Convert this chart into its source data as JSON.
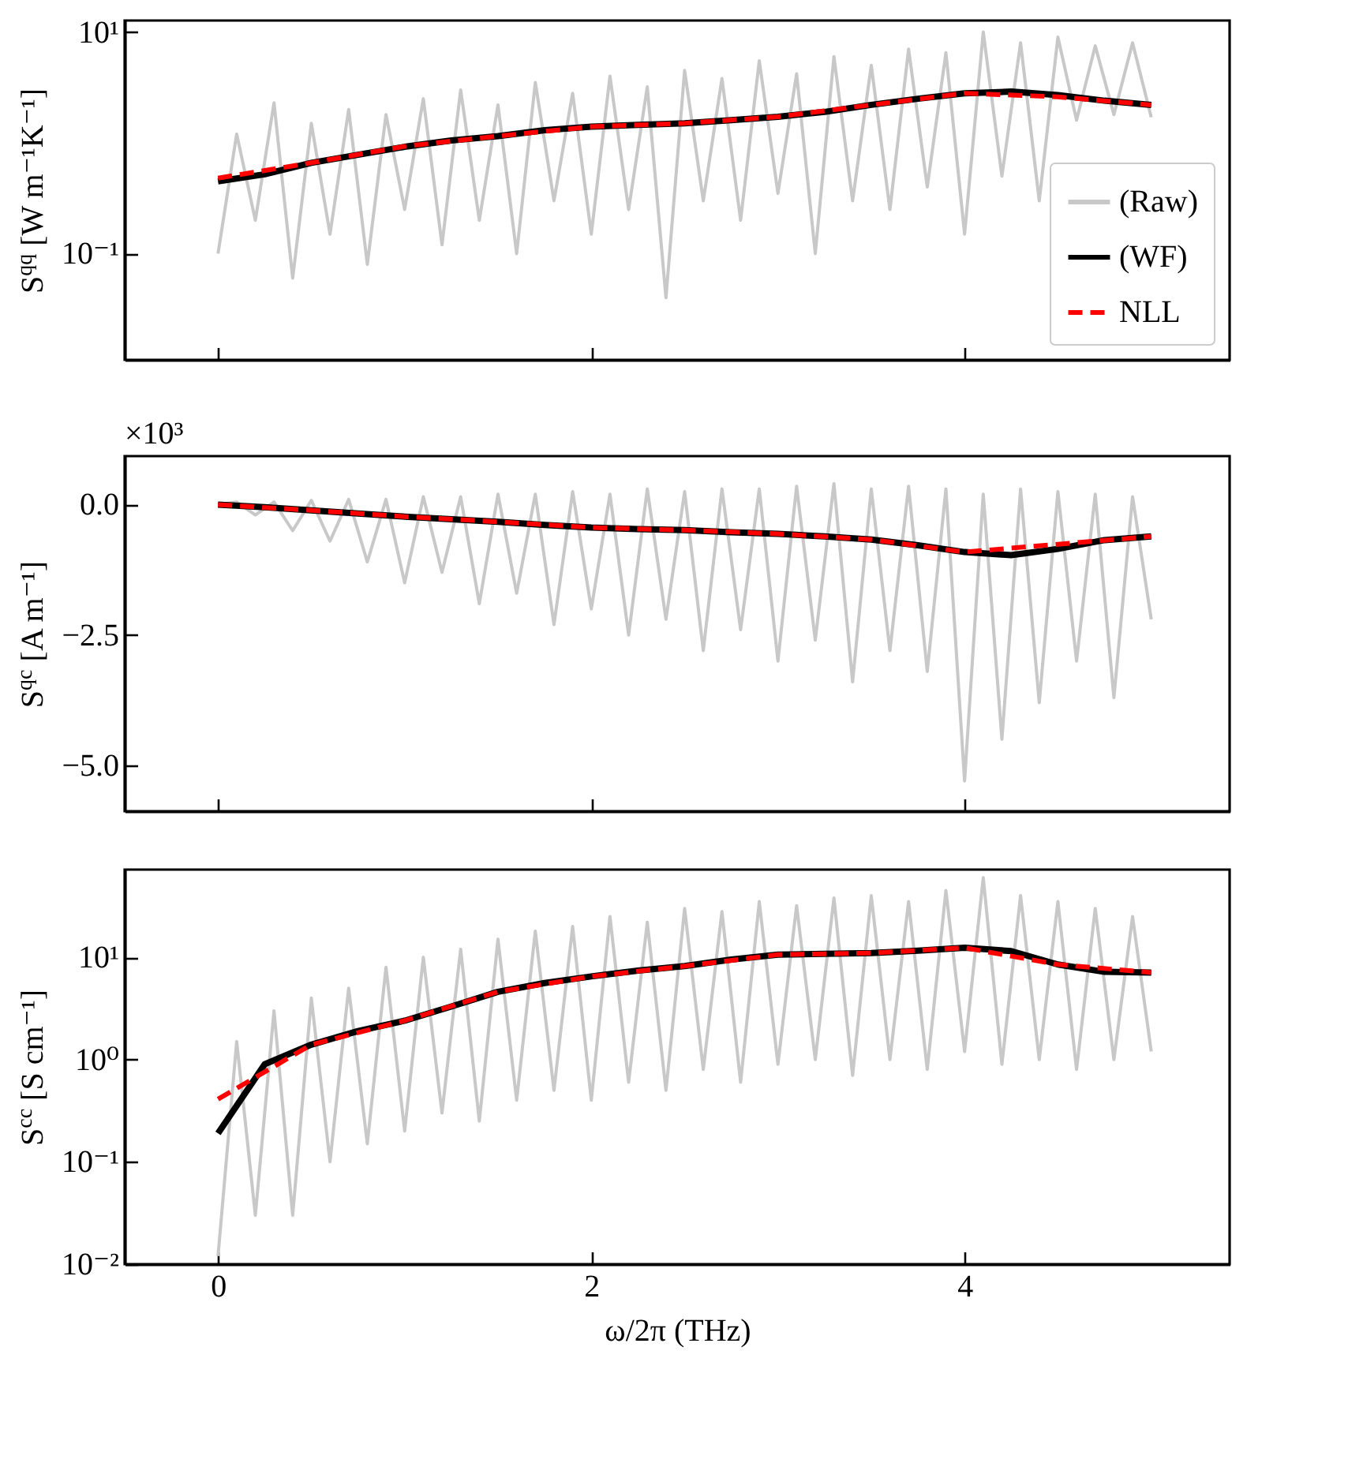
{
  "chart_data": [
    {
      "type": "line",
      "ylabel": "S$^{qq}$ [W m⁻¹K⁻¹]",
      "xlim": [
        -0.5,
        5.42
      ],
      "xticks": [
        0,
        2,
        4
      ],
      "ylim": [
        0.011,
        12.7
      ],
      "yticks": [
        {
          "value": 10,
          "label": "10¹"
        },
        {
          "value": 0.1,
          "label": "10⁻¹"
        }
      ],
      "log": "y",
      "grid": false,
      "legend": "bottom right",
      "tick_labels": "y",
      "series": [
        {
          "name": "(Raw)",
          "color": "#c8c8c8",
          "line_style": "solid",
          "x": [
            0,
            0.1,
            0.2,
            0.3,
            0.4,
            0.5,
            0.6,
            0.7,
            0.8,
            0.9,
            1,
            1.1,
            1.2,
            1.3,
            1.4,
            1.5,
            1.6,
            1.7,
            1.8,
            1.9,
            2,
            2.1,
            2.2,
            2.3,
            2.4,
            2.5,
            2.6,
            2.7,
            2.8,
            2.9,
            3,
            3.1,
            3.2,
            3.3,
            3.4,
            3.5,
            3.6,
            3.7,
            3.8,
            3.9,
            4,
            4.1,
            4.2,
            4.3,
            4.4,
            4.5,
            4.6,
            4.7,
            4.8,
            4.9,
            5
          ],
          "values": [
            0.1,
            1.2,
            0.2,
            2.3,
            0.06,
            1.5,
            0.15,
            2.0,
            0.08,
            1.8,
            0.25,
            2.5,
            0.12,
            3.0,
            0.2,
            2.2,
            0.1,
            3.5,
            0.3,
            2.8,
            0.15,
            4.0,
            0.25,
            3.2,
            0.04,
            4.5,
            0.3,
            3.8,
            0.2,
            5.5,
            0.35,
            4.2,
            0.1,
            6.0,
            0.3,
            5.0,
            0.25,
            7.0,
            0.4,
            6.5,
            0.15,
            10,
            0.5,
            8.0,
            0.3,
            9.0,
            1.6,
            7.5,
            1.8,
            8.0,
            1.7
          ]
        },
        {
          "name": "(WF)",
          "color": "#000000",
          "line_style": "solid",
          "x": [
            0,
            0.25,
            0.5,
            0.75,
            1,
            1.25,
            1.5,
            1.75,
            2,
            2.25,
            2.5,
            2.75,
            3,
            3.25,
            3.5,
            3.75,
            4,
            4.25,
            4.5,
            4.75,
            5
          ],
          "values": [
            0.45,
            0.52,
            0.66,
            0.78,
            0.92,
            1.05,
            1.15,
            1.3,
            1.4,
            1.45,
            1.5,
            1.6,
            1.72,
            1.9,
            2.2,
            2.5,
            2.8,
            2.9,
            2.7,
            2.4,
            2.2
          ]
        },
        {
          "name": "NLL",
          "color": "#ff0000",
          "line_style": "dashed",
          "x": [
            0,
            0.5,
            1,
            1.5,
            2,
            2.5,
            3,
            3.5,
            4,
            4.5,
            5
          ],
          "values": [
            0.48,
            0.66,
            0.93,
            1.15,
            1.4,
            1.5,
            1.72,
            2.2,
            2.8,
            2.6,
            2.2
          ]
        }
      ]
    },
    {
      "type": "line",
      "ylabel": "S$^{qc}$ [A m⁻¹]",
      "annotations": [
        "×10³"
      ],
      "xlim": [
        -0.5,
        5.42
      ],
      "xticks": [
        0,
        2,
        4
      ],
      "ylim": [
        -5.88,
        0.93
      ],
      "yticks": [
        {
          "value": 0,
          "label": "0.0"
        },
        {
          "value": -2.5,
          "label": "−2.5"
        },
        {
          "value": -5,
          "label": "−5.0"
        }
      ],
      "grid": false,
      "legend": false,
      "tick_labels": "y",
      "series": [
        {
          "color": "#c8c8c8",
          "line_style": "solid",
          "x": [
            0,
            0.1,
            0.2,
            0.3,
            0.4,
            0.5,
            0.6,
            0.7,
            0.8,
            0.9,
            1,
            1.1,
            1.2,
            1.3,
            1.4,
            1.5,
            1.6,
            1.7,
            1.8,
            1.9,
            2,
            2.1,
            2.2,
            2.3,
            2.4,
            2.5,
            2.6,
            2.7,
            2.8,
            2.9,
            3,
            3.1,
            3.2,
            3.3,
            3.4,
            3.5,
            3.6,
            3.7,
            3.8,
            3.9,
            4,
            4.1,
            4.2,
            4.3,
            4.4,
            4.5,
            4.6,
            4.7,
            4.8,
            4.9,
            5
          ],
          "values": [
            0,
            0.05,
            -0.2,
            0.05,
            -0.5,
            0.08,
            -0.7,
            0.1,
            -1.1,
            0.1,
            -1.5,
            0.15,
            -1.3,
            0.15,
            -1.9,
            0.2,
            -1.7,
            0.2,
            -2.3,
            0.25,
            -2.0,
            0.2,
            -2.5,
            0.3,
            -2.2,
            0.25,
            -2.8,
            0.3,
            -2.4,
            0.3,
            -3.0,
            0.35,
            -2.6,
            0.4,
            -3.4,
            0.3,
            -2.8,
            0.35,
            -3.2,
            0.3,
            -5.3,
            0.2,
            -4.5,
            0.3,
            -3.8,
            0.25,
            -3.0,
            0.2,
            -3.7,
            0.15,
            -2.2
          ]
        },
        {
          "color": "#000000",
          "line_style": "solid",
          "x": [
            0,
            0.25,
            0.5,
            0.75,
            1,
            1.25,
            1.5,
            1.75,
            2,
            2.25,
            2.5,
            2.75,
            3,
            3.25,
            3.5,
            3.75,
            4,
            4.25,
            4.5,
            4.75,
            5
          ],
          "values": [
            0,
            -0.05,
            -0.11,
            -0.17,
            -0.23,
            -0.28,
            -0.33,
            -0.39,
            -0.44,
            -0.47,
            -0.49,
            -0.53,
            -0.56,
            -0.61,
            -0.67,
            -0.78,
            -0.91,
            -0.97,
            -0.85,
            -0.68,
            -0.61
          ]
        },
        {
          "color": "#ff0000",
          "line_style": "dashed",
          "x": [
            0,
            0.5,
            1,
            1.5,
            2,
            2.5,
            3,
            3.5,
            4,
            4.5,
            5
          ],
          "values": [
            0,
            -0.11,
            -0.23,
            -0.33,
            -0.44,
            -0.49,
            -0.56,
            -0.67,
            -0.91,
            -0.76,
            -0.61
          ]
        }
      ]
    },
    {
      "type": "line",
      "xlabel": "ω/2π (THz)",
      "ylabel": "S$^{cc}$ [S cm⁻¹]",
      "xlim": [
        -0.5,
        5.42
      ],
      "xticks": [
        0,
        2,
        4
      ],
      "ylim": [
        0.01,
        72
      ],
      "yticks": [
        {
          "value": 10,
          "label": "10¹"
        },
        {
          "value": 1,
          "label": "10⁰"
        },
        {
          "value": 0.1,
          "label": "10⁻¹"
        },
        {
          "value": 0.01,
          "label": "10⁻²"
        }
      ],
      "log": "y",
      "grid": false,
      "legend": false,
      "series": [
        {
          "color": "#c8c8c8",
          "line_style": "solid",
          "x": [
            0,
            0.1,
            0.2,
            0.3,
            0.4,
            0.5,
            0.6,
            0.7,
            0.8,
            0.9,
            1,
            1.1,
            1.2,
            1.3,
            1.4,
            1.5,
            1.6,
            1.7,
            1.8,
            1.9,
            2,
            2.1,
            2.2,
            2.3,
            2.4,
            2.5,
            2.6,
            2.7,
            2.8,
            2.9,
            3,
            3.1,
            3.2,
            3.3,
            3.4,
            3.5,
            3.6,
            3.7,
            3.8,
            3.9,
            4,
            4.1,
            4.2,
            4.3,
            4.4,
            4.5,
            4.6,
            4.7,
            4.8,
            4.9,
            5
          ],
          "values": [
            0.012,
            1.5,
            0.03,
            3,
            0.03,
            4,
            0.1,
            5,
            0.15,
            8,
            0.2,
            10,
            0.3,
            12,
            0.25,
            15,
            0.4,
            18,
            0.5,
            20,
            0.4,
            25,
            0.6,
            22,
            0.5,
            30,
            0.8,
            28,
            0.6,
            35,
            0.9,
            32,
            1.0,
            38,
            0.7,
            40,
            1.0,
            35,
            0.8,
            45,
            1.2,
            60,
            0.9,
            40,
            1.0,
            35,
            0.8,
            30,
            1.0,
            25,
            1.2
          ]
        },
        {
          "color": "#000000",
          "line_style": "solid",
          "x": [
            0,
            0.25,
            0.5,
            0.75,
            1,
            1.25,
            1.5,
            1.75,
            2,
            2.25,
            2.5,
            2.75,
            3,
            3.25,
            3.5,
            3.75,
            4,
            4.25,
            4.5,
            4.75,
            5
          ],
          "values": [
            0.19,
            0.9,
            1.4,
            1.9,
            2.4,
            3.3,
            4.6,
            5.6,
            6.5,
            7.4,
            8.2,
            9.5,
            10.6,
            10.8,
            11,
            11.6,
            12.4,
            11.5,
            8.5,
            7.2,
            7.1
          ]
        },
        {
          "color": "#ff0000",
          "line_style": "dashed",
          "x": [
            0,
            0.5,
            1,
            1.5,
            2,
            2.5,
            3,
            3.5,
            4,
            4.5,
            5
          ],
          "values": [
            0.41,
            1.4,
            2.4,
            4.6,
            6.5,
            8.2,
            10.6,
            11,
            12.4,
            8.5,
            7.1
          ]
        }
      ]
    }
  ]
}
